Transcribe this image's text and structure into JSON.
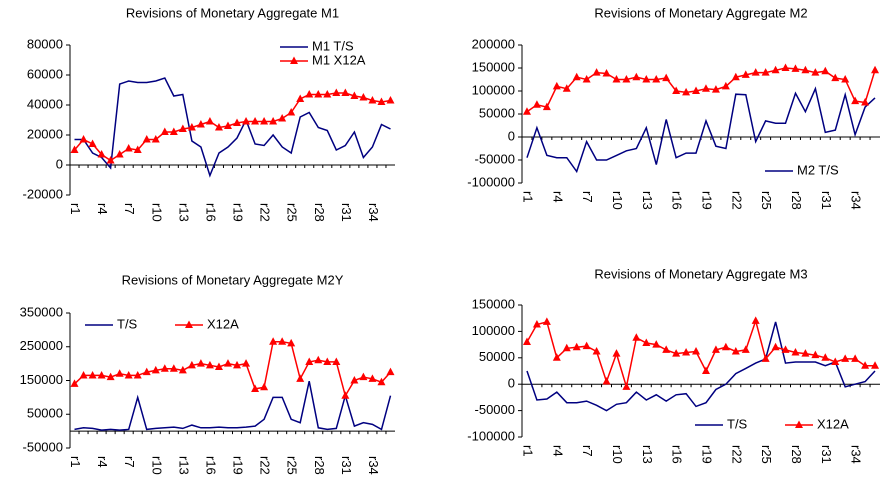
{
  "chart_data": [
    {
      "type": "line",
      "title": "Revisions of Monetary Aggregate M1",
      "legend": "top-right",
      "categories": [
        "r1",
        null,
        null,
        "r4",
        null,
        null,
        "r7",
        null,
        null,
        "r10",
        null,
        null,
        "r13",
        null,
        null,
        "r16",
        null,
        null,
        "r19",
        null,
        null,
        "r22",
        null,
        null,
        "r25",
        null,
        null,
        "r28",
        null,
        null,
        "r31",
        null,
        null,
        "r34",
        null,
        null
      ],
      "ylim": [
        -20000,
        80000
      ],
      "yticks": [
        -20000,
        0,
        20000,
        40000,
        60000,
        80000
      ],
      "series": [
        {
          "name": "M1 T/S",
          "color": "#000080",
          "marker": "none",
          "values": [
            17000,
            17000,
            8000,
            5000,
            -2000,
            54000,
            56000,
            55000,
            55000,
            56000,
            58000,
            46000,
            47000,
            16000,
            12000,
            -7000,
            8000,
            12000,
            18000,
            30000,
            14000,
            13000,
            20000,
            12000,
            8000,
            32000,
            35000,
            25000,
            23000,
            10000,
            13000,
            22000,
            5000,
            12000,
            27000,
            24000
          ]
        },
        {
          "name": "M1 X12A",
          "color": "#ff0000",
          "marker": "triangle",
          "values": [
            10000,
            17000,
            14000,
            7000,
            3000,
            7000,
            11000,
            10000,
            17000,
            17000,
            22000,
            22000,
            24000,
            25000,
            27000,
            29000,
            25000,
            26000,
            28000,
            29000,
            29000,
            29000,
            29000,
            31000,
            35000,
            44000,
            47000,
            47000,
            47000,
            48000,
            48000,
            46000,
            45000,
            43000,
            42000,
            43000
          ]
        }
      ]
    },
    {
      "type": "line",
      "title": "Revisions of Monetary Aggregate M2",
      "legend": "bottom-right",
      "categories": [
        "r1",
        null,
        null,
        "r4",
        null,
        null,
        "r7",
        null,
        null,
        "r10",
        null,
        null,
        "r13",
        null,
        null,
        "r16",
        null,
        null,
        "r19",
        null,
        null,
        "r22",
        null,
        null,
        "r25",
        null,
        null,
        "r28",
        null,
        null,
        "r31",
        null,
        null,
        "r34",
        null,
        null
      ],
      "ylim": [
        -100000,
        200000
      ],
      "yticks": [
        -100000,
        -50000,
        0,
        50000,
        100000,
        150000,
        200000
      ],
      "series": [
        {
          "name": "M2 T/S",
          "color": "#000080",
          "marker": "none",
          "values": [
            -45000,
            20000,
            -40000,
            -45000,
            -45000,
            -75000,
            -10000,
            -50000,
            -50000,
            -40000,
            -30000,
            -25000,
            20000,
            -60000,
            38000,
            -45000,
            -35000,
            -35000,
            35000,
            -20000,
            -25000,
            93000,
            92000,
            -10000,
            35000,
            30000,
            30000,
            95000,
            55000,
            105000,
            10000,
            15000,
            92000,
            5000,
            65000,
            85000
          ]
        },
        {
          "color": "#ff0000",
          "marker": "triangle",
          "values": [
            55000,
            70000,
            65000,
            110000,
            105000,
            130000,
            125000,
            140000,
            138000,
            125000,
            125000,
            130000,
            125000,
            125000,
            128000,
            100000,
            97000,
            100000,
            105000,
            103000,
            110000,
            130000,
            135000,
            140000,
            140000,
            145000,
            150000,
            148000,
            145000,
            140000,
            143000,
            128000,
            125000,
            78000,
            75000,
            145000
          ]
        }
      ]
    },
    {
      "type": "line",
      "title": "Revisions of Monetary Aggregate M2Y",
      "legend": "top-left",
      "categories": [
        "r1",
        null,
        null,
        "r4",
        null,
        null,
        "r7",
        null,
        null,
        "r10",
        null,
        null,
        "r13",
        null,
        null,
        "r16",
        null,
        null,
        "r19",
        null,
        null,
        "r22",
        null,
        null,
        "r25",
        null,
        null,
        "r28",
        null,
        null,
        "r31",
        null,
        null,
        "r34",
        null,
        null
      ],
      "ylim": [
        -50000,
        350000
      ],
      "yticks": [
        -50000,
        50000,
        150000,
        250000,
        350000
      ],
      "series": [
        {
          "name": "T/S",
          "color": "#000080",
          "marker": "none",
          "values": [
            5000,
            10000,
            8000,
            3000,
            5000,
            3000,
            5000,
            100000,
            5000,
            8000,
            10000,
            12000,
            8000,
            18000,
            10000,
            10000,
            12000,
            10000,
            10000,
            12000,
            15000,
            35000,
            100000,
            100000,
            35000,
            25000,
            148000,
            10000,
            5000,
            8000,
            105000,
            15000,
            25000,
            20000,
            5000,
            105000
          ]
        },
        {
          "name": "X12A",
          "color": "#ff0000",
          "marker": "triangle",
          "values": [
            140000,
            165000,
            165000,
            165000,
            160000,
            170000,
            165000,
            165000,
            175000,
            180000,
            185000,
            185000,
            180000,
            195000,
            200000,
            195000,
            190000,
            200000,
            195000,
            200000,
            125000,
            130000,
            265000,
            265000,
            260000,
            155000,
            205000,
            210000,
            205000,
            205000,
            105000,
            150000,
            160000,
            155000,
            145000,
            175000
          ]
        }
      ]
    },
    {
      "type": "line",
      "title": "Revisions of Monetary Aggregate M3",
      "legend": "bottom-right",
      "categories": [
        "r1",
        null,
        null,
        "r4",
        null,
        null,
        "r7",
        null,
        null,
        "r10",
        null,
        null,
        "r13",
        null,
        null,
        "r16",
        null,
        null,
        "r19",
        null,
        null,
        "r22",
        null,
        null,
        "r25",
        null,
        null,
        "r28",
        null,
        null,
        "r31",
        null,
        null,
        "r34",
        null,
        null
      ],
      "ylim": [
        -100000,
        150000
      ],
      "yticks": [
        -100000,
        -50000,
        0,
        50000,
        100000,
        150000
      ],
      "series": [
        {
          "name": "T/S",
          "color": "#000080",
          "marker": "none",
          "values": [
            25000,
            -30000,
            -28000,
            -15000,
            -35000,
            -35000,
            -32000,
            -40000,
            -50000,
            -38000,
            -35000,
            -15000,
            -30000,
            -20000,
            -32000,
            -20000,
            -18000,
            -42000,
            -35000,
            -10000,
            0,
            20000,
            30000,
            40000,
            48000,
            118000,
            40000,
            42000,
            42000,
            42000,
            35000,
            42000,
            -5000,
            0,
            5000,
            25000
          ]
        },
        {
          "name": "X12A",
          "color": "#ff0000",
          "marker": "triangle",
          "values": [
            80000,
            113000,
            118000,
            50000,
            68000,
            70000,
            72000,
            62000,
            5000,
            58000,
            -5000,
            88000,
            78000,
            75000,
            65000,
            58000,
            60000,
            62000,
            25000,
            65000,
            70000,
            62000,
            65000,
            120000,
            48000,
            70000,
            65000,
            60000,
            58000,
            55000,
            50000,
            42000,
            48000,
            48000,
            35000,
            35000
          ]
        }
      ]
    }
  ]
}
